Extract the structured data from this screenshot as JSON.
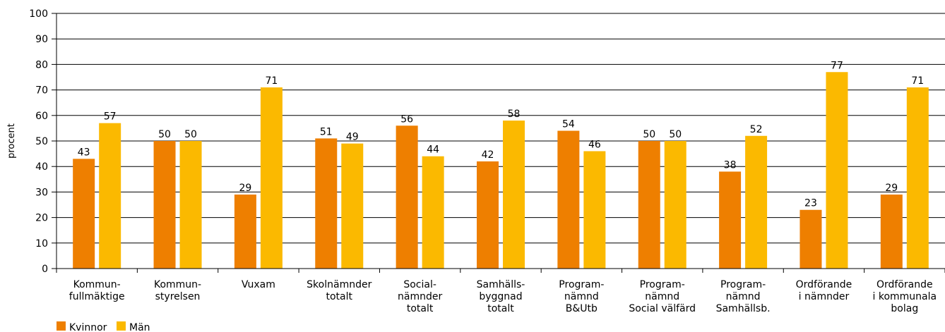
{
  "chart_data": {
    "type": "bar",
    "ylabel": "procent",
    "ylim": [
      0,
      100
    ],
    "yticks": [
      "0",
      "10",
      "20",
      "30",
      "40",
      "50",
      "60",
      "70",
      "80",
      "90",
      "100"
    ],
    "grid": true,
    "legend_position": "bottom-left",
    "categories": [
      [
        "Kommun-",
        "fullmäktige"
      ],
      [
        "Kommun-",
        "styrelsen"
      ],
      [
        "Vuxam"
      ],
      [
        "Skolnämnder",
        "totalt"
      ],
      [
        "Social-",
        "nämnder",
        "totalt"
      ],
      [
        "Samhälls-",
        "byggnad",
        "totalt"
      ],
      [
        "Program-",
        "nämnd",
        "B&Utb"
      ],
      [
        "Program-",
        "nämnd",
        "Social välfärd"
      ],
      [
        "Program-",
        "nämnd",
        "Samhällsb."
      ],
      [
        "Ordförande",
        "i nämnder"
      ],
      [
        "Ordförande",
        "i kommunala",
        "bolag"
      ]
    ],
    "series": [
      {
        "name": "Kvinnor",
        "color": "#ee7f00",
        "values": [
          43,
          50,
          29,
          51,
          56,
          42,
          54,
          50,
          38,
          23,
          29
        ]
      },
      {
        "name": "Män",
        "color": "#fbb900",
        "values": [
          57,
          50,
          71,
          49,
          44,
          58,
          46,
          50,
          52,
          77,
          71
        ]
      }
    ]
  }
}
